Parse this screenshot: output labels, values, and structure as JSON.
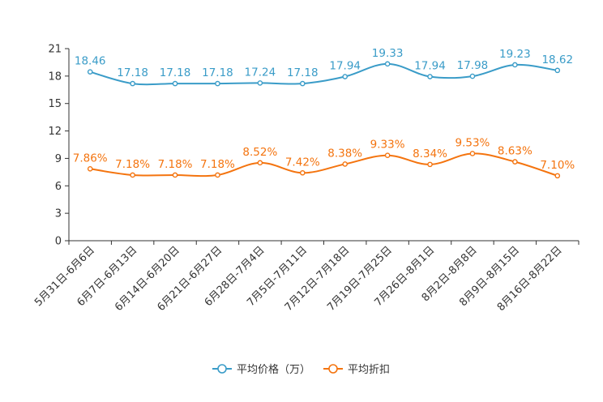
{
  "chart_data": {
    "type": "line",
    "title": "",
    "xlabel": "",
    "ylabel": "",
    "ylim": [
      0,
      21
    ],
    "yticks": [
      0,
      3,
      6,
      9,
      12,
      15,
      18,
      21
    ],
    "grid": false,
    "legend_position": "bottom-center",
    "categories": [
      "5月31日-6月6日",
      "6月7日-6月13日",
      "6月14日-6月20日",
      "6月21日-6月27日",
      "6月28日-7月4日",
      "7月5日-7月11日",
      "7月12日-7月18日",
      "7月19日-7月25日",
      "7月26日-8月1日",
      "8月2日-8月8日",
      "8月9日-8月15日",
      "8月16日-8月22日"
    ],
    "series": [
      {
        "name": "平均价格（万）",
        "color": "#3a9cc8",
        "values": [
          18.46,
          17.18,
          17.18,
          17.18,
          17.24,
          17.18,
          17.94,
          19.33,
          17.94,
          17.98,
          19.23,
          18.62
        ],
        "labels": [
          "18.46",
          "17.18",
          "17.18",
          "17.18",
          "17.24",
          "17.18",
          "17.94",
          "19.33",
          "17.94",
          "17.98",
          "19.23",
          "18.62"
        ]
      },
      {
        "name": "平均折扣",
        "color": "#f4740f",
        "values": [
          7.86,
          7.18,
          7.18,
          7.18,
          8.52,
          7.42,
          8.38,
          9.33,
          8.34,
          9.53,
          8.63,
          7.1
        ],
        "labels": [
          "7.86%",
          "7.18%",
          "7.18%",
          "7.18%",
          "8.52%",
          "7.42%",
          "8.38%",
          "9.33%",
          "8.34%",
          "9.53%",
          "8.63%",
          "7.10%"
        ]
      }
    ]
  }
}
